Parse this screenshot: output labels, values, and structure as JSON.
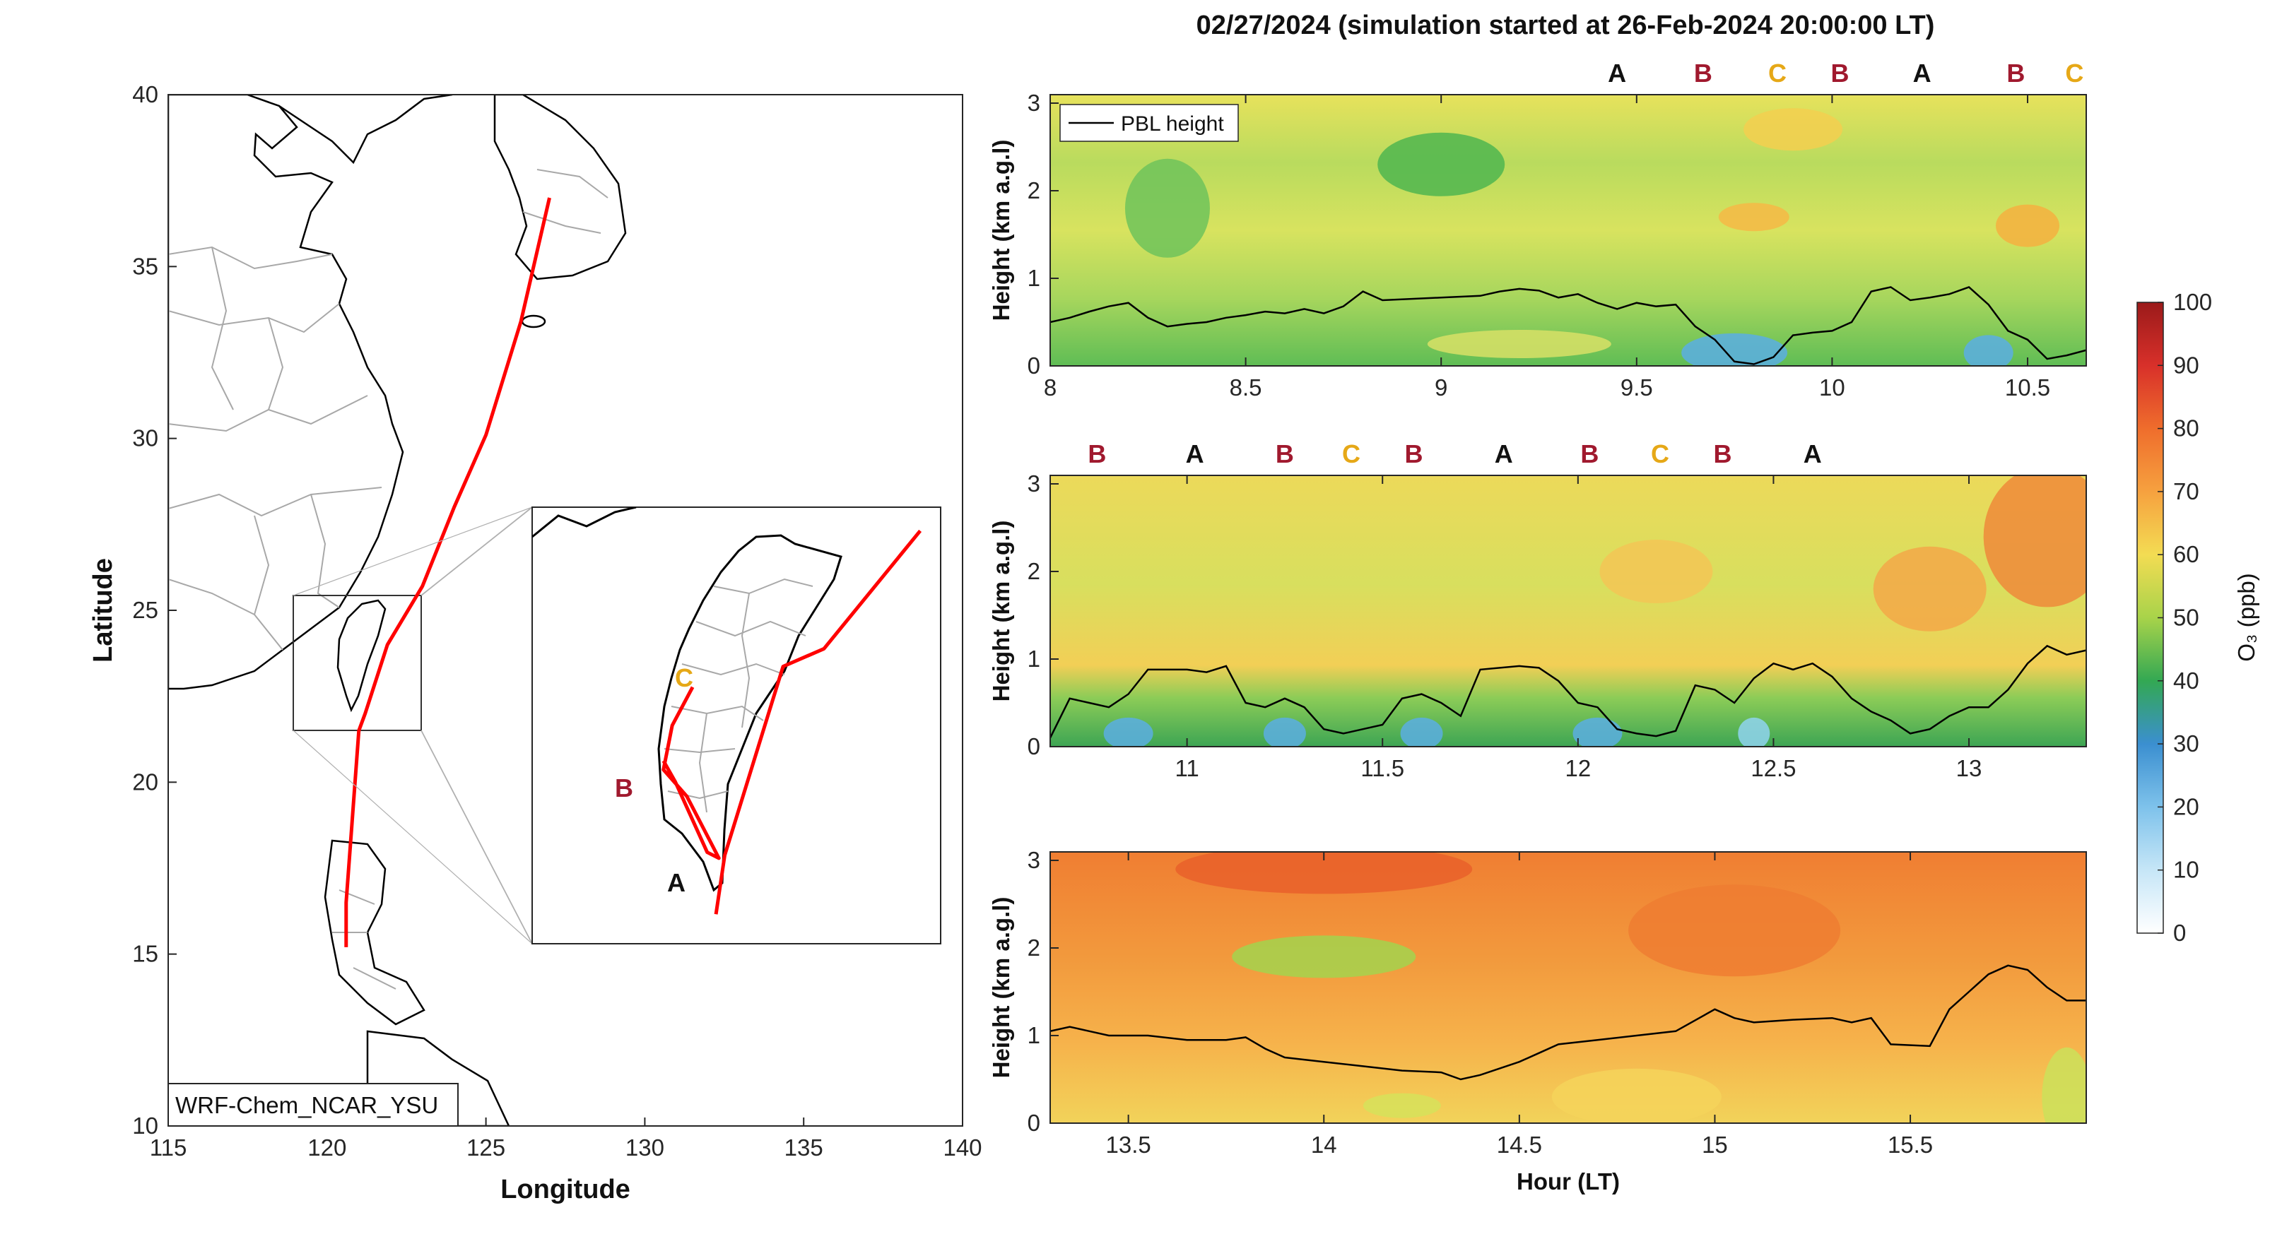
{
  "figure": {
    "title": "02/27/2024 (simulation started at 26-Feb-2024 20:00:00 LT)",
    "colors": {
      "track": "#ff0000",
      "label_A": "#111111",
      "label_B": "#a0192e",
      "label_C": "#e6a817",
      "map_coast": "#000000",
      "map_border": "#a8a8a8"
    }
  },
  "map": {
    "xlabel": "Longitude",
    "ylabel": "Latitude",
    "xticks": [
      "115",
      "120",
      "125",
      "130",
      "135",
      "140"
    ],
    "yticks": [
      "10",
      "15",
      "20",
      "25",
      "30",
      "35",
      "40"
    ],
    "xlim": [
      115,
      140
    ],
    "ylim": [
      10,
      40
    ],
    "model_label": "WRF-Chem_NCAR_YSU",
    "track": [
      [
        127.0,
        37.0
      ],
      [
        126.1,
        33.4
      ],
      [
        125.0,
        30.1
      ],
      [
        124.0,
        28.0
      ],
      [
        123.0,
        25.7
      ],
      [
        121.9,
        24.0
      ],
      [
        121.2,
        22.0
      ],
      [
        121.0,
        21.5
      ],
      [
        120.6,
        16.5
      ],
      [
        120.6,
        15.2
      ]
    ],
    "inset_track_outer": [
      [
        139.3,
        28.0
      ],
      [
        136.0,
        24.0
      ],
      [
        134.6,
        23.4
      ],
      [
        132.6,
        17.0
      ],
      [
        132.3,
        15.0
      ]
    ],
    "inset_track_inner": [
      [
        131.5,
        22.7
      ],
      [
        130.8,
        21.4
      ],
      [
        130.5,
        19.9
      ],
      [
        131.3,
        19.0
      ],
      [
        132.4,
        16.9
      ],
      [
        132.0,
        17.1
      ],
      [
        130.9,
        19.5
      ],
      [
        130.5,
        20.2
      ]
    ],
    "inset_labels": [
      "C",
      "B",
      "A"
    ],
    "inset_box_lon": [
      119.0,
      123.0
    ],
    "inset_box_lat": [
      21.5,
      26.0
    ]
  },
  "chart_data": [
    {
      "type": "heatmap",
      "panel": "top",
      "ylabel": "Height (km a.g.l)",
      "xlim": [
        8.0,
        10.65
      ],
      "ylim": [
        0,
        3
      ],
      "xticks": [
        8,
        8.5,
        9,
        9.5,
        10,
        10.5
      ],
      "yticks": [
        0,
        1,
        2,
        3
      ],
      "legend": "PBL height",
      "site_labels": [
        {
          "t": 9.45,
          "label": "A"
        },
        {
          "t": 9.67,
          "label": "B"
        },
        {
          "t": 9.86,
          "label": "C"
        },
        {
          "t": 10.02,
          "label": "B"
        },
        {
          "t": 10.23,
          "label": "A"
        },
        {
          "t": 10.47,
          "label": "B"
        },
        {
          "t": 10.62,
          "label": "C"
        }
      ],
      "pbl_height": [
        [
          8.0,
          0.5
        ],
        [
          8.05,
          0.55
        ],
        [
          8.1,
          0.62
        ],
        [
          8.15,
          0.68
        ],
        [
          8.2,
          0.72
        ],
        [
          8.25,
          0.55
        ],
        [
          8.3,
          0.45
        ],
        [
          8.35,
          0.48
        ],
        [
          8.4,
          0.5
        ],
        [
          8.45,
          0.55
        ],
        [
          8.5,
          0.58
        ],
        [
          8.55,
          0.62
        ],
        [
          8.6,
          0.6
        ],
        [
          8.65,
          0.65
        ],
        [
          8.7,
          0.6
        ],
        [
          8.75,
          0.68
        ],
        [
          8.8,
          0.85
        ],
        [
          8.85,
          0.75
        ],
        [
          9.0,
          0.78
        ],
        [
          9.1,
          0.8
        ],
        [
          9.15,
          0.85
        ],
        [
          9.2,
          0.88
        ],
        [
          9.25,
          0.86
        ],
        [
          9.3,
          0.78
        ],
        [
          9.35,
          0.82
        ],
        [
          9.4,
          0.72
        ],
        [
          9.45,
          0.65
        ],
        [
          9.5,
          0.72
        ],
        [
          9.55,
          0.68
        ],
        [
          9.6,
          0.7
        ],
        [
          9.65,
          0.45
        ],
        [
          9.7,
          0.3
        ],
        [
          9.75,
          0.05
        ],
        [
          9.8,
          0.02
        ],
        [
          9.85,
          0.1
        ],
        [
          9.9,
          0.35
        ],
        [
          9.95,
          0.38
        ],
        [
          10.0,
          0.4
        ],
        [
          10.05,
          0.5
        ],
        [
          10.1,
          0.85
        ],
        [
          10.15,
          0.9
        ],
        [
          10.2,
          0.75
        ],
        [
          10.25,
          0.78
        ],
        [
          10.3,
          0.82
        ],
        [
          10.35,
          0.9
        ],
        [
          10.4,
          0.7
        ],
        [
          10.45,
          0.4
        ],
        [
          10.5,
          0.3
        ],
        [
          10.55,
          0.08
        ],
        [
          10.6,
          0.12
        ],
        [
          10.65,
          0.18
        ]
      ]
    },
    {
      "type": "heatmap",
      "panel": "middle",
      "ylabel": "Height (km a.g.l)",
      "xlim": [
        10.65,
        13.3
      ],
      "ylim": [
        0,
        3
      ],
      "xticks": [
        11,
        11.5,
        12,
        12.5,
        13
      ],
      "yticks": [
        0,
        1,
        2,
        3
      ],
      "site_labels": [
        {
          "t": 10.77,
          "label": "B"
        },
        {
          "t": 11.02,
          "label": "A"
        },
        {
          "t": 11.25,
          "label": "B"
        },
        {
          "t": 11.42,
          "label": "C"
        },
        {
          "t": 11.58,
          "label": "B"
        },
        {
          "t": 11.81,
          "label": "A"
        },
        {
          "t": 12.03,
          "label": "B"
        },
        {
          "t": 12.21,
          "label": "C"
        },
        {
          "t": 12.37,
          "label": "B"
        },
        {
          "t": 12.6,
          "label": "A"
        }
      ],
      "pbl_height": [
        [
          10.65,
          0.1
        ],
        [
          10.7,
          0.55
        ],
        [
          10.75,
          0.5
        ],
        [
          10.8,
          0.45
        ],
        [
          10.85,
          0.6
        ],
        [
          10.9,
          0.88
        ],
        [
          11.0,
          0.88
        ],
        [
          11.05,
          0.85
        ],
        [
          11.1,
          0.92
        ],
        [
          11.15,
          0.5
        ],
        [
          11.2,
          0.45
        ],
        [
          11.25,
          0.55
        ],
        [
          11.3,
          0.45
        ],
        [
          11.35,
          0.2
        ],
        [
          11.4,
          0.15
        ],
        [
          11.45,
          0.2
        ],
        [
          11.5,
          0.25
        ],
        [
          11.55,
          0.55
        ],
        [
          11.6,
          0.6
        ],
        [
          11.65,
          0.5
        ],
        [
          11.7,
          0.35
        ],
        [
          11.75,
          0.88
        ],
        [
          11.85,
          0.92
        ],
        [
          11.9,
          0.9
        ],
        [
          11.95,
          0.75
        ],
        [
          12.0,
          0.5
        ],
        [
          12.05,
          0.45
        ],
        [
          12.1,
          0.2
        ],
        [
          12.15,
          0.15
        ],
        [
          12.2,
          0.12
        ],
        [
          12.25,
          0.18
        ],
        [
          12.3,
          0.7
        ],
        [
          12.35,
          0.65
        ],
        [
          12.4,
          0.5
        ],
        [
          12.45,
          0.78
        ],
        [
          12.5,
          0.95
        ],
        [
          12.55,
          0.88
        ],
        [
          12.6,
          0.95
        ],
        [
          12.65,
          0.8
        ],
        [
          12.7,
          0.55
        ],
        [
          12.75,
          0.4
        ],
        [
          12.8,
          0.3
        ],
        [
          12.85,
          0.15
        ],
        [
          12.9,
          0.2
        ],
        [
          12.95,
          0.35
        ],
        [
          13.0,
          0.45
        ],
        [
          13.05,
          0.45
        ],
        [
          13.1,
          0.65
        ],
        [
          13.15,
          0.95
        ],
        [
          13.2,
          1.15
        ],
        [
          13.25,
          1.05
        ],
        [
          13.3,
          1.1
        ]
      ]
    },
    {
      "type": "heatmap",
      "panel": "bottom",
      "xlabel": "Hour (LT)",
      "ylabel": "Height (km a.g.l)",
      "xlim": [
        13.3,
        15.95
      ],
      "ylim": [
        0,
        3
      ],
      "xticks": [
        13.5,
        14,
        14.5,
        15,
        15.5
      ],
      "yticks": [
        0,
        1,
        2,
        3
      ],
      "pbl_height": [
        [
          13.3,
          1.05
        ],
        [
          13.35,
          1.1
        ],
        [
          13.4,
          1.05
        ],
        [
          13.45,
          1.0
        ],
        [
          13.55,
          1.0
        ],
        [
          13.65,
          0.95
        ],
        [
          13.75,
          0.95
        ],
        [
          13.8,
          0.98
        ],
        [
          13.85,
          0.85
        ],
        [
          13.9,
          0.75
        ],
        [
          14.0,
          0.7
        ],
        [
          14.1,
          0.65
        ],
        [
          14.2,
          0.6
        ],
        [
          14.3,
          0.58
        ],
        [
          14.35,
          0.5
        ],
        [
          14.4,
          0.55
        ],
        [
          14.5,
          0.7
        ],
        [
          14.55,
          0.8
        ],
        [
          14.6,
          0.9
        ],
        [
          14.7,
          0.95
        ],
        [
          14.8,
          1.0
        ],
        [
          14.9,
          1.05
        ],
        [
          15.0,
          1.3
        ],
        [
          15.05,
          1.2
        ],
        [
          15.1,
          1.15
        ],
        [
          15.2,
          1.18
        ],
        [
          15.3,
          1.2
        ],
        [
          15.35,
          1.15
        ],
        [
          15.4,
          1.2
        ],
        [
          15.45,
          0.9
        ],
        [
          15.55,
          0.88
        ],
        [
          15.6,
          1.3
        ],
        [
          15.65,
          1.5
        ],
        [
          15.7,
          1.7
        ],
        [
          15.75,
          1.8
        ],
        [
          15.8,
          1.75
        ],
        [
          15.85,
          1.55
        ],
        [
          15.9,
          1.4
        ],
        [
          15.95,
          1.4
        ]
      ]
    }
  ],
  "colorbar": {
    "label": "O₃ (ppb)",
    "ticks": [
      "0",
      "10",
      "20",
      "30",
      "40",
      "50",
      "60",
      "70",
      "80",
      "90",
      "100"
    ],
    "range": [
      0,
      100
    ]
  }
}
